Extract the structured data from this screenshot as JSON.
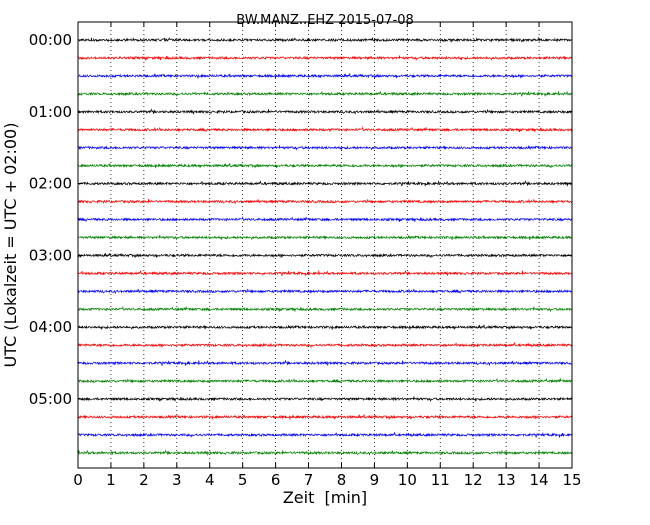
{
  "chart_data": {
    "type": "line",
    "title": "BW.MANZ..EHZ 2015-07-08",
    "xlabel": "Zeit  [min]",
    "ylabel": "UTC (Lokalzeit = UTC + 02:00)",
    "xlim": [
      0,
      15
    ],
    "xticks": [
      "0",
      "1",
      "2",
      "3",
      "4",
      "5",
      "6",
      "7",
      "8",
      "9",
      "10",
      "11",
      "12",
      "13",
      "14",
      "15"
    ],
    "yticks": [
      "00:00",
      "01:00",
      "02:00",
      "03:00",
      "04:00",
      "05:00"
    ],
    "grid": "vertical dotted",
    "trace_interval_min": 15,
    "trace_colors": [
      "#000000",
      "#ff0000",
      "#0000ff",
      "#008000"
    ],
    "traces": [
      {
        "start": "00:00"
      },
      {
        "start": "00:15"
      },
      {
        "start": "00:30"
      },
      {
        "start": "00:45"
      },
      {
        "start": "01:00"
      },
      {
        "start": "01:15"
      },
      {
        "start": "01:30"
      },
      {
        "start": "01:45"
      },
      {
        "start": "02:00"
      },
      {
        "start": "02:15"
      },
      {
        "start": "02:30"
      },
      {
        "start": "02:45"
      },
      {
        "start": "03:00"
      },
      {
        "start": "03:15"
      },
      {
        "start": "03:30"
      },
      {
        "start": "03:45"
      },
      {
        "start": "04:00"
      },
      {
        "start": "04:15"
      },
      {
        "start": "04:30"
      },
      {
        "start": "04:45"
      },
      {
        "start": "05:00"
      },
      {
        "start": "05:15"
      },
      {
        "start": "05:30"
      },
      {
        "start": "05:45"
      }
    ]
  }
}
